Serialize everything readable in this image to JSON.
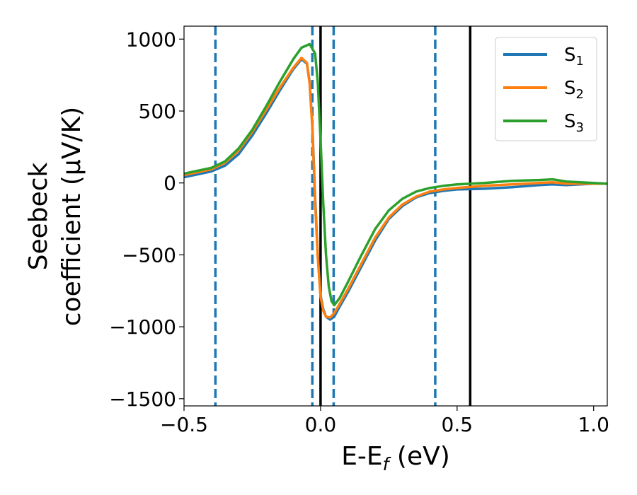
{
  "chart_data": {
    "type": "line",
    "xlabel": "E-E",
    "xlabel_sub": "f",
    "xlabel_unit": " (eV)",
    "ylabel_line1": "Seebeck",
    "ylabel_line2": "coefficient  (μV/K)",
    "xlim": [
      -0.5,
      1.05
    ],
    "ylim": [
      -1550,
      1090
    ],
    "xticks": [
      -0.5,
      0.0,
      0.5,
      1.0
    ],
    "xtick_labels": [
      "−0.5",
      "0.0",
      "0.5",
      "1.0"
    ],
    "yticks": [
      -1500,
      -1000,
      -500,
      0,
      500,
      1000
    ],
    "ytick_labels": [
      "−1500",
      "−1000",
      "−500",
      "0",
      "500",
      "1000"
    ],
    "grid": false,
    "legend_position": "top-right",
    "series": [
      {
        "name": "S",
        "subscript": "1",
        "color": "#1f77b4",
        "points": [
          [
            -0.5,
            40
          ],
          [
            -0.45,
            60
          ],
          [
            -0.4,
            80
          ],
          [
            -0.35,
            120
          ],
          [
            -0.3,
            200
          ],
          [
            -0.25,
            330
          ],
          [
            -0.2,
            480
          ],
          [
            -0.15,
            640
          ],
          [
            -0.1,
            790
          ],
          [
            -0.07,
            860
          ],
          [
            -0.05,
            830
          ],
          [
            -0.04,
            700
          ],
          [
            -0.03,
            400
          ],
          [
            -0.02,
            -100
          ],
          [
            -0.01,
            -500
          ],
          [
            0.0,
            -780
          ],
          [
            0.01,
            -880
          ],
          [
            0.02,
            -930
          ],
          [
            0.035,
            -950
          ],
          [
            0.05,
            -930
          ],
          [
            0.07,
            -860
          ],
          [
            0.1,
            -760
          ],
          [
            0.15,
            -580
          ],
          [
            0.2,
            -400
          ],
          [
            0.25,
            -250
          ],
          [
            0.3,
            -160
          ],
          [
            0.35,
            -100
          ],
          [
            0.4,
            -70
          ],
          [
            0.45,
            -55
          ],
          [
            0.5,
            -45
          ],
          [
            0.6,
            -40
          ],
          [
            0.7,
            -30
          ],
          [
            0.8,
            -15
          ],
          [
            0.85,
            -10
          ],
          [
            0.9,
            -15
          ],
          [
            0.95,
            -10
          ],
          [
            1.0,
            -5
          ],
          [
            1.05,
            -5
          ]
        ]
      },
      {
        "name": "S",
        "subscript": "2",
        "color": "#ff7f0e",
        "points": [
          [
            -0.5,
            55
          ],
          [
            -0.45,
            75
          ],
          [
            -0.4,
            95
          ],
          [
            -0.35,
            140
          ],
          [
            -0.3,
            225
          ],
          [
            -0.25,
            355
          ],
          [
            -0.2,
            505
          ],
          [
            -0.15,
            660
          ],
          [
            -0.1,
            800
          ],
          [
            -0.07,
            870
          ],
          [
            -0.05,
            835
          ],
          [
            -0.04,
            690
          ],
          [
            -0.03,
            380
          ],
          [
            -0.02,
            -130
          ],
          [
            -0.01,
            -520
          ],
          [
            0.0,
            -790
          ],
          [
            0.01,
            -890
          ],
          [
            0.02,
            -930
          ],
          [
            0.035,
            -935
          ],
          [
            0.05,
            -905
          ],
          [
            0.07,
            -840
          ],
          [
            0.1,
            -740
          ],
          [
            0.15,
            -560
          ],
          [
            0.2,
            -380
          ],
          [
            0.25,
            -240
          ],
          [
            0.3,
            -150
          ],
          [
            0.35,
            -95
          ],
          [
            0.4,
            -60
          ],
          [
            0.45,
            -45
          ],
          [
            0.5,
            -35
          ],
          [
            0.6,
            -20
          ],
          [
            0.7,
            -10
          ],
          [
            0.8,
            0
          ],
          [
            0.85,
            5
          ],
          [
            0.9,
            -5
          ],
          [
            0.95,
            -5
          ],
          [
            1.0,
            -5
          ],
          [
            1.05,
            -5
          ]
        ]
      },
      {
        "name": "S",
        "subscript": "3",
        "color": "#2ca02c",
        "points": [
          [
            -0.5,
            65
          ],
          [
            -0.45,
            85
          ],
          [
            -0.4,
            105
          ],
          [
            -0.35,
            150
          ],
          [
            -0.3,
            240
          ],
          [
            -0.25,
            370
          ],
          [
            -0.2,
            530
          ],
          [
            -0.15,
            700
          ],
          [
            -0.1,
            860
          ],
          [
            -0.07,
            940
          ],
          [
            -0.04,
            965
          ],
          [
            -0.02,
            900
          ],
          [
            -0.01,
            700
          ],
          [
            0.0,
            300
          ],
          [
            0.01,
            -150
          ],
          [
            0.02,
            -500
          ],
          [
            0.03,
            -720
          ],
          [
            0.04,
            -820
          ],
          [
            0.05,
            -850
          ],
          [
            0.07,
            -800
          ],
          [
            0.1,
            -690
          ],
          [
            0.15,
            -500
          ],
          [
            0.2,
            -320
          ],
          [
            0.25,
            -190
          ],
          [
            0.3,
            -110
          ],
          [
            0.35,
            -60
          ],
          [
            0.4,
            -35
          ],
          [
            0.45,
            -20
          ],
          [
            0.5,
            -10
          ],
          [
            0.6,
            0
          ],
          [
            0.7,
            15
          ],
          [
            0.8,
            20
          ],
          [
            0.85,
            25
          ],
          [
            0.9,
            10
          ],
          [
            0.95,
            5
          ],
          [
            1.0,
            0
          ],
          [
            1.05,
            -5
          ]
        ]
      }
    ],
    "vlines_dashed": [
      -0.385,
      -0.03,
      0.048,
      0.42
    ],
    "vlines_dashed_color": "#1f77b4",
    "vlines_solid": [
      0.0,
      0.548
    ],
    "vlines_solid_color": "#000000"
  }
}
